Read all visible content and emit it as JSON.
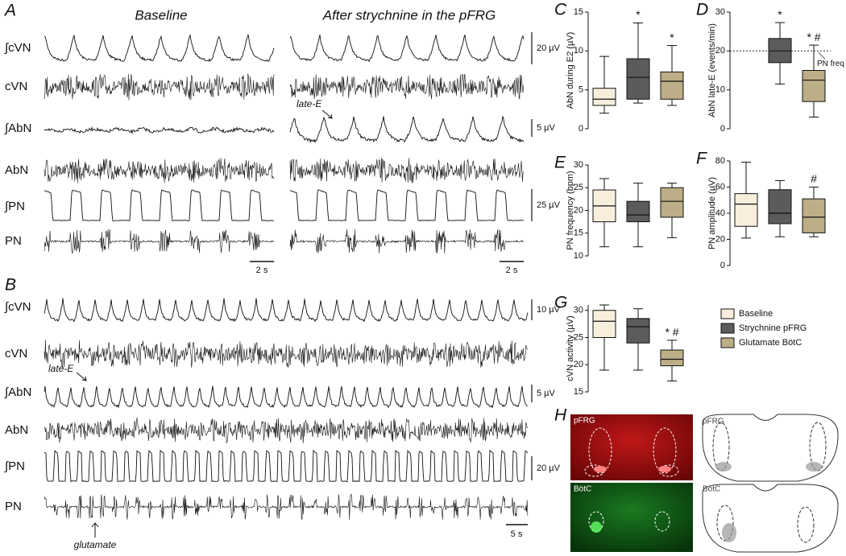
{
  "panel_a": {
    "label": "A",
    "titles": [
      "Baseline",
      "After strychnine in the pFRG"
    ],
    "traces": [
      "∫cVN",
      "cVN",
      "∫AbN",
      "AbN",
      "∫PN",
      "PN"
    ],
    "scale_bars": [
      "20 µV",
      "5 µV",
      "25 µV"
    ],
    "time_bars": [
      "2 s",
      "2 s"
    ],
    "annotation": "late-E"
  },
  "panel_b": {
    "label": "B",
    "traces": [
      "∫cVN",
      "cVN",
      "∫AbN",
      "AbN",
      "∫PN",
      "PN"
    ],
    "scale_bars": [
      "10 µV",
      "5 µV",
      "20 µV"
    ],
    "time_bar": "5 s",
    "annotations": [
      "late-E",
      "glutamate"
    ]
  },
  "panel_h": {
    "label": "H",
    "regions": [
      "pFRG",
      "BötC"
    ],
    "drawing_labels": [
      "pFRG",
      "BötC"
    ]
  },
  "legend": [
    {
      "name": "Baseline",
      "color": "#f8eedc"
    },
    {
      "name": "Strychnine pFRG",
      "color": "#5b5b5b"
    },
    {
      "name": "Glutamate BötC",
      "color": "#bcae86"
    }
  ],
  "chart_data": [
    {
      "type": "box",
      "panel": "C",
      "ylabel": "AbN during E2 (µV)",
      "ylim": [
        0,
        15
      ],
      "yticks": [
        0,
        5,
        10,
        15
      ],
      "boxes": [
        {
          "group": 0,
          "min": 2,
          "q1": 3,
          "median": 3.8,
          "q3": 5.2,
          "max": 9.3
        },
        {
          "group": 1,
          "min": 3.3,
          "q1": 3.8,
          "median": 6.6,
          "q3": 9,
          "max": 13.6
        },
        {
          "group": 2,
          "min": 3,
          "q1": 3.8,
          "median": 6.1,
          "q3": 7.3,
          "max": 10.7
        }
      ],
      "annotations": [
        {
          "box": 1,
          "text": "*"
        },
        {
          "box": 2,
          "text": "*"
        }
      ]
    },
    {
      "type": "box",
      "panel": "D",
      "ylabel": "AbN late-E (events/min)",
      "ylim": [
        0,
        30
      ],
      "yticks": [
        0,
        10,
        20,
        30
      ],
      "boxes": [
        {
          "group": 1,
          "min": 11.5,
          "q1": 17,
          "median": 20,
          "q3": 23.2,
          "max": 27.3
        },
        {
          "group": 2,
          "min": 3,
          "q1": 7,
          "median": 12.5,
          "q3": 15,
          "max": 21.5
        }
      ],
      "annotations": [
        {
          "box": 0,
          "text": "*"
        },
        {
          "box": 1,
          "text": "* #"
        }
      ],
      "reference_line": {
        "value": 20,
        "label": "PN freq"
      }
    },
    {
      "type": "box",
      "panel": "E",
      "ylabel": "PN frequency (bpm)",
      "ylim": [
        10,
        30
      ],
      "yticks": [
        10,
        15,
        20,
        25,
        30
      ],
      "boxes": [
        {
          "group": 0,
          "min": 12,
          "q1": 17.5,
          "median": 21,
          "q3": 24.5,
          "max": 27
        },
        {
          "group": 1,
          "min": 12,
          "q1": 17.5,
          "median": 19,
          "q3": 22,
          "max": 26
        },
        {
          "group": 2,
          "min": 14,
          "q1": 18.5,
          "median": 22,
          "q3": 25,
          "max": 26
        }
      ]
    },
    {
      "type": "box",
      "panel": "F",
      "ylabel": "PN amplitude (µV)",
      "ylim": [
        0,
        80
      ],
      "yticks": [
        0,
        20,
        40,
        60,
        80
      ],
      "boxes": [
        {
          "group": 0,
          "min": 21,
          "q1": 30,
          "median": 47,
          "q3": 55,
          "max": 79
        },
        {
          "group": 1,
          "min": 22,
          "q1": 32,
          "median": 40,
          "q3": 58,
          "max": 65
        },
        {
          "group": 2,
          "min": 22,
          "q1": 25,
          "median": 37,
          "q3": 51,
          "max": 60
        }
      ],
      "annotations": [
        {
          "box": 2,
          "text": "#"
        }
      ]
    },
    {
      "type": "box",
      "panel": "G",
      "ylabel": "cVN activity (µV)",
      "ylim": [
        15,
        31
      ],
      "yticks": [
        15,
        20,
        25,
        30
      ],
      "boxes": [
        {
          "group": 0,
          "min": 19,
          "q1": 25,
          "median": 28,
          "q3": 30,
          "max": 31
        },
        {
          "group": 1,
          "min": 19,
          "q1": 24,
          "median": 27,
          "q3": 28.5,
          "max": 30.3
        },
        {
          "group": 2,
          "min": 17,
          "q1": 19.8,
          "median": 21,
          "q3": 22.7,
          "max": 24.5
        }
      ],
      "annotations": [
        {
          "box": 2,
          "text": "* #"
        }
      ]
    }
  ]
}
